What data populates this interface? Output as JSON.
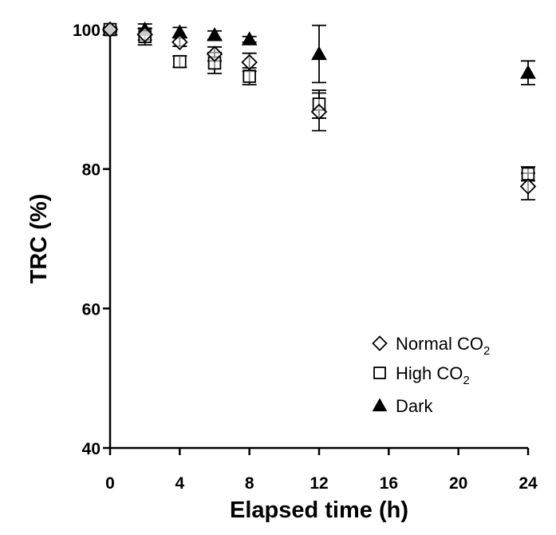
{
  "chart_data": {
    "type": "scatter",
    "title": "",
    "xlabel": "Elapsed time (h)",
    "ylabel": "TRC (%)",
    "xlim": [
      0,
      24
    ],
    "ylim": [
      40,
      100
    ],
    "x_ticks": [
      0,
      4,
      8,
      12,
      16,
      20,
      24
    ],
    "y_ticks": [
      40,
      60,
      80,
      100
    ],
    "grid": false,
    "legend_position": "bottom-right",
    "series": [
      {
        "name": "Normal CO2",
        "name_parts": [
          "Normal CO",
          "2"
        ],
        "marker": "diamond-open",
        "points": [
          {
            "x": 0,
            "y": 100.0,
            "err": 0.3
          },
          {
            "x": 2,
            "y": 99.3,
            "err": 0.8
          },
          {
            "x": 4,
            "y": 98.2,
            "err": 0.6
          },
          {
            "x": 6,
            "y": 96.5,
            "err": 1.0
          },
          {
            "x": 8,
            "y": 95.3,
            "err": 1.3
          },
          {
            "x": 12,
            "y": 88.2,
            "err": 2.7
          },
          {
            "x": 24,
            "y": 77.5,
            "err": 1.9
          }
        ]
      },
      {
        "name": "High CO2",
        "name_parts": [
          "High CO",
          "2"
        ],
        "marker": "square-open",
        "points": [
          {
            "x": 0,
            "y": 100.0,
            "err": 0.3
          },
          {
            "x": 2,
            "y": 99.0,
            "err": 1.2
          },
          {
            "x": 4,
            "y": 95.4,
            "err": 0.8
          },
          {
            "x": 6,
            "y": 95.2,
            "err": 1.5
          },
          {
            "x": 8,
            "y": 93.3,
            "err": 1.2
          },
          {
            "x": 12,
            "y": 89.3,
            "err": 2.0
          },
          {
            "x": 24,
            "y": 79.3,
            "err": 1.0
          }
        ]
      },
      {
        "name": "Dark",
        "name_parts": [
          "Dark",
          ""
        ],
        "marker": "triangle-filled",
        "points": [
          {
            "x": 0,
            "y": 100.0,
            "err": 0.3
          },
          {
            "x": 2,
            "y": 100.0,
            "err": 0.8
          },
          {
            "x": 4,
            "y": 99.6,
            "err": 0.7
          },
          {
            "x": 6,
            "y": 99.2,
            "err": 0.6
          },
          {
            "x": 8,
            "y": 98.6,
            "err": 0.4
          },
          {
            "x": 12,
            "y": 96.5,
            "err": 4.1
          },
          {
            "x": 24,
            "y": 93.8,
            "err": 1.7
          }
        ]
      }
    ]
  },
  "colors": {
    "ink": "#000000",
    "background": "#ffffff"
  }
}
